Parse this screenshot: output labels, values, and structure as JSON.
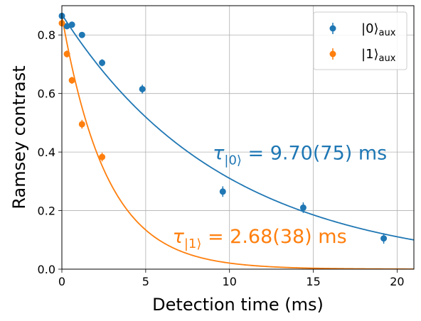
{
  "chart_data": {
    "type": "scatter",
    "xlabel": "Detection time (ms)",
    "ylabel": "Ramsey contrast",
    "xlim": [
      0,
      21
    ],
    "ylim": [
      0,
      0.9
    ],
    "xticks": [
      0,
      5,
      10,
      15,
      20
    ],
    "xtick_labels": [
      "0",
      "5",
      "10",
      "15",
      "20"
    ],
    "yticks": [
      0.0,
      0.2,
      0.4,
      0.6,
      0.8
    ],
    "ytick_labels": [
      "0.0",
      "0.2",
      "0.4",
      "0.6",
      "0.8"
    ],
    "grid": true,
    "legend_position": "top-right",
    "series": [
      {
        "name": "|0⟩",
        "name_subscript": "aux",
        "color": "#1f77b4",
        "x": [
          0.0,
          0.3,
          0.6,
          1.2,
          2.4,
          4.8,
          9.6,
          14.4,
          19.2
        ],
        "y": [
          0.865,
          0.83,
          0.835,
          0.8,
          0.705,
          0.615,
          0.265,
          0.21,
          0.105
        ],
        "yerr": [
          0.01,
          0.01,
          0.01,
          0.01,
          0.012,
          0.015,
          0.018,
          0.018,
          0.018
        ],
        "fit": {
          "model": "exponential",
          "amplitude": 0.87,
          "tau": 9.7
        },
        "annotation": {
          "symbol": "τ",
          "subscript": "|0⟩",
          "text": " = 9.70(75) ms",
          "x": 9.0,
          "y": 0.375
        }
      },
      {
        "name": "|1⟩",
        "name_subscript": "aux",
        "color": "#ff7f0e",
        "x": [
          0.0,
          0.3,
          0.6,
          1.2,
          2.4
        ],
        "y": [
          0.84,
          0.735,
          0.645,
          0.495,
          0.383
        ],
        "yerr": [
          0.012,
          0.012,
          0.012,
          0.015,
          0.015
        ],
        "fit": {
          "model": "exponential",
          "amplitude": 0.865,
          "tau": 2.68
        },
        "annotation": {
          "symbol": "τ",
          "subscript": "|1⟩",
          "text": " = 2.68(38) ms",
          "x": 6.6,
          "y": 0.09
        }
      }
    ]
  }
}
